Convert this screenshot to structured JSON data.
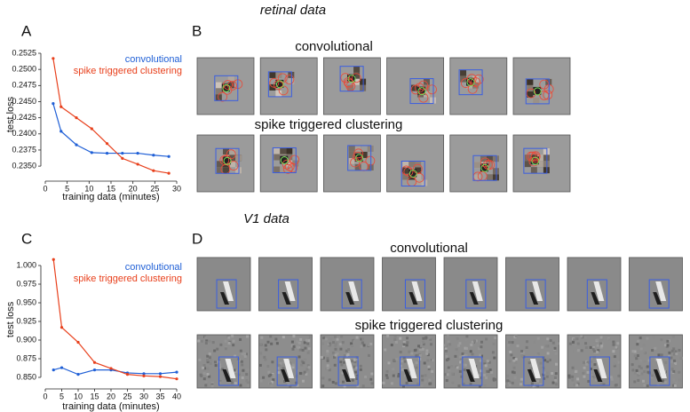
{
  "sections": [
    "retinal data",
    "V1 data"
  ],
  "panel_labels": [
    "A",
    "B",
    "C",
    "D"
  ],
  "image_rows": {
    "retinal": [
      "convolutional",
      "spike triggered clustering"
    ],
    "v1": [
      "convolutional",
      "spike triggered clustering"
    ]
  },
  "chart_data": [
    {
      "type": "line",
      "xlabel": "training data (minutes)",
      "ylabel": "test loss",
      "x": [
        1.8,
        3.6,
        7.1,
        10.6,
        14.1,
        17.6,
        21.1,
        24.7,
        28.2
      ],
      "series": [
        {
          "name": "convolutional",
          "color": "#1f5fd6",
          "values": [
            0.2447,
            0.2404,
            0.2383,
            0.2371,
            0.237,
            0.237,
            0.237,
            0.2367,
            0.2365
          ]
        },
        {
          "name": "spike triggered clustering",
          "color": "#e8401c",
          "values": [
            0.2517,
            0.2442,
            0.2425,
            0.2408,
            0.2385,
            0.2362,
            0.2353,
            0.2343,
            0.2339
          ]
        }
      ],
      "xlim": [
        0,
        30
      ],
      "ylim": [
        0.2335,
        0.2525
      ],
      "xticks": [
        0,
        5,
        10,
        15,
        20,
        25,
        30
      ],
      "yticks": [
        {
          "value": 0.235,
          "label": "0.2350"
        },
        0.2375,
        {
          "value": 0.24,
          "label": "0.2400"
        },
        0.2425,
        {
          "value": 0.245,
          "label": "0.2450"
        },
        0.2475,
        {
          "value": 0.25,
          "label": "0.2500"
        },
        0.2525
      ]
    },
    {
      "type": "line",
      "xlabel": "training data (minutes)",
      "ylabel": "test loss",
      "x": [
        2.5,
        5,
        10,
        15,
        20,
        25,
        30,
        35,
        40
      ],
      "series": [
        {
          "name": "convolutional",
          "color": "#1f5fd6",
          "values": [
            0.86,
            0.863,
            0.854,
            0.86,
            0.86,
            0.856,
            0.855,
            0.855,
            0.857
          ]
        },
        {
          "name": "spike triggered clustering",
          "color": "#e8401c",
          "values": [
            1.008,
            0.917,
            0.897,
            0.87,
            0.862,
            0.854,
            0.852,
            0.851,
            0.848
          ]
        }
      ],
      "xlim": [
        0,
        40
      ],
      "ylim": [
        0.845,
        1.01
      ],
      "xticks": [
        0,
        5,
        10,
        15,
        20,
        25,
        30,
        35,
        40
      ],
      "yticks": [
        {
          "value": 0.85,
          "label": "0.850"
        },
        0.875,
        {
          "value": 0.9,
          "label": "0.900"
        },
        0.925,
        {
          "value": 0.95,
          "label": "0.950"
        },
        0.975,
        {
          "value": 1,
          "label": "1.000"
        }
      ]
    }
  ]
}
